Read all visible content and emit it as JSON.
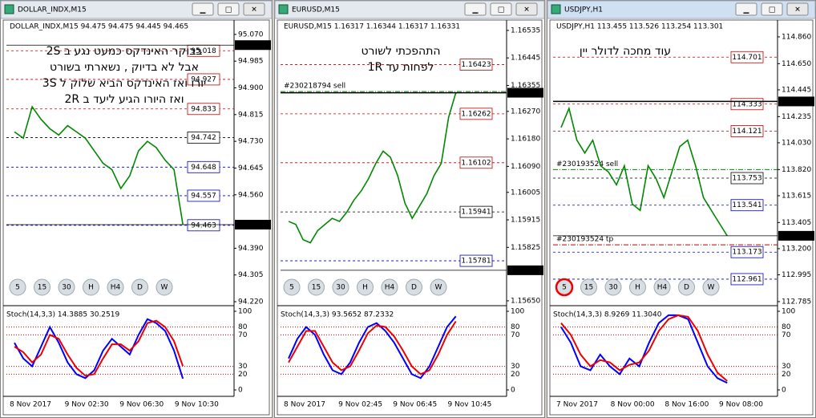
{
  "windows": [
    {
      "title": "DOLLAR_INDX,M15",
      "header": "DOLLAR_INDX,M15  94.475 94.475 94.445 94.465",
      "note": [
        "בבוקר האינדקס כמעט נגע ב 2S",
        "אבל לא בדיוק , נשארתי בשורט",
        "יורו ואז האינדקס הביא שלוק ל 3S",
        "ואז היורו הגיע ליעד ב 2R"
      ],
      "ylim": [
        94.215,
        95.108
      ],
      "price_ticks": [
        {
          "value": 95.07,
          "label": "95.070"
        },
        94.985,
        {
          "value": 94.9,
          "label": "94.900"
        },
        94.815,
        {
          "value": 94.73,
          "label": "94.730"
        },
        94.645,
        {
          "value": 94.56,
          "label": "94.560"
        },
        {
          "value": 94.39,
          "label": "94.390"
        },
        94.305,
        {
          "value": 94.22,
          "label": "94.220"
        }
      ],
      "highlights": [
        95.036,
        94.465
      ],
      "levels": [
        {
          "price": 95.018,
          "color": "#c00000"
        },
        {
          "price": 94.927,
          "color": "#c00000"
        },
        {
          "price": 94.833,
          "color": "#c00000"
        },
        {
          "price": 94.742,
          "color": "#000000"
        },
        {
          "price": 94.648,
          "color": "#0000c0"
        },
        {
          "price": 94.557,
          "color": "#0000c0"
        },
        {
          "price": 94.463,
          "color": "#0000c0"
        }
      ],
      "trades": [],
      "closes": [
        94.76,
        94.74,
        94.84,
        94.8,
        94.77,
        94.75,
        94.78,
        94.76,
        94.74,
        94.7,
        94.66,
        94.64,
        94.58,
        94.62,
        94.7,
        94.73,
        94.71,
        94.67,
        94.64,
        94.465
      ],
      "periods": [
        "5",
        "15",
        "30",
        "H",
        "H4",
        "D",
        "W"
      ],
      "stoch_label": "Stoch(14,3,3) 14.3885 30.2519",
      "stoch_ticks": [
        100,
        80,
        70,
        30,
        20,
        0
      ],
      "stoch_main": [
        60,
        40,
        30,
        55,
        80,
        60,
        35,
        20,
        15,
        25,
        50,
        65,
        55,
        45,
        70,
        90,
        85,
        75,
        50,
        14.3885
      ],
      "stoch_signal": [
        55,
        48,
        35,
        45,
        70,
        65,
        45,
        28,
        18,
        20,
        40,
        58,
        58,
        50,
        62,
        85,
        88,
        80,
        62,
        30.2519
      ],
      "times": [
        "8 Nov 2017",
        "9 Nov 02:30",
        "9 Nov 06:30",
        "9 Nov 10:30"
      ]
    },
    {
      "title": "EURUSD,M15",
      "header": "EURUSD,M15  1.16317 1.16344 1.16317 1.16331",
      "note": [
        "התהפכתי לשורט",
        "לפחות עד 1R"
      ],
      "ylim": [
        1.15642,
        1.16561
      ],
      "price_ticks": [
        1.16535,
        1.16445,
        1.16355,
        {
          "value": 1.1627,
          "label": "1.16270"
        },
        {
          "value": 1.1618,
          "label": "1.16180"
        },
        {
          "value": 1.1609,
          "label": "1.16090"
        },
        1.16005,
        1.15915,
        1.15825,
        {
          "value": 1.1565,
          "label": "1.15650"
        }
      ],
      "highlights": [
        1.16331,
        {
          "value": 1.1575,
          "label": "1.15750"
        }
      ],
      "levels": [
        {
          "price": 1.16423,
          "color": "#c00000"
        },
        {
          "price": 1.16262,
          "color": "#c00000"
        },
        {
          "price": 1.16102,
          "color": "#c00000"
        },
        {
          "price": 1.15941,
          "color": "#000000"
        },
        {
          "price": 1.15781,
          "color": "#0000c0"
        }
      ],
      "trades": [
        {
          "label": "#230218794 sell",
          "price": 1.16335
        }
      ],
      "closes": [
        1.1591,
        1.159,
        1.1585,
        1.1584,
        1.1588,
        1.159,
        1.1592,
        1.1591,
        1.1594,
        1.1598,
        1.1601,
        1.1605,
        1.161,
        1.1614,
        1.1612,
        1.1606,
        1.1597,
        1.1592,
        1.1596,
        1.16,
        1.1606,
        1.161,
        1.1625,
        1.16331
      ],
      "periods": [
        "5",
        "15",
        "30",
        "H",
        "H4",
        "D",
        "W"
      ],
      "stoch_label": "Stoch(14,3,3) 93.5652 87.2332",
      "stoch_ticks": [
        100,
        80,
        70,
        30,
        20,
        0
      ],
      "stoch_main": [
        40,
        65,
        80,
        70,
        45,
        25,
        20,
        35,
        60,
        80,
        85,
        75,
        60,
        40,
        20,
        15,
        30,
        55,
        80,
        93.5652
      ],
      "stoch_signal": [
        35,
        55,
        75,
        75,
        55,
        35,
        25,
        30,
        50,
        72,
        82,
        80,
        68,
        50,
        30,
        20,
        25,
        45,
        70,
        87.2332
      ],
      "times": [
        "8 Nov 2017",
        "9 Nov 02:45",
        "9 Nov 06:45",
        "9 Nov 10:45"
      ]
    },
    {
      "title": "USDJPY,H1",
      "header": "USDJPY,H1  113.455 113.526 113.254 113.301",
      "note": [
        "עוד מחכה לדולר יין"
      ],
      "ylim": [
        112.772,
        114.973
      ],
      "price_ticks": [
        {
          "value": 114.86,
          "label": "114.860"
        },
        {
          "value": 114.65,
          "label": "114.650"
        },
        114.445,
        114.235,
        {
          "value": 114.03,
          "label": "114.030"
        },
        {
          "value": 113.82,
          "label": "113.820"
        },
        113.615,
        113.405,
        {
          "value": 113.2,
          "label": "113.200"
        },
        112.995,
        112.785
      ],
      "highlights": [
        114.354,
        113.301
      ],
      "levels": [
        {
          "price": 114.701,
          "color": "#c00000"
        },
        {
          "price": 114.333,
          "color": "#c00000"
        },
        {
          "price": 114.121,
          "color": "#c00000"
        },
        {
          "price": 113.753,
          "color": "#000000"
        },
        {
          "price": 113.541,
          "color": "#0000c0"
        },
        {
          "price": 113.173,
          "color": "#0000c0"
        },
        {
          "price": 112.961,
          "color": "#0000c0"
        }
      ],
      "trades": [
        {
          "label": "#230193524 sell",
          "price": 113.82
        },
        {
          "label": "#230193524 tp",
          "price": 113.23
        }
      ],
      "closes": [
        114.15,
        114.3,
        114.05,
        113.95,
        114.05,
        113.85,
        113.8,
        113.7,
        113.85,
        113.55,
        113.5,
        113.85,
        113.75,
        113.6,
        113.8,
        114,
        114.05,
        113.85,
        113.6,
        113.5,
        113.4,
        113.301
      ],
      "periods": [
        "5",
        "15",
        "30",
        "H",
        "H4",
        "D",
        "W"
      ],
      "stoch_label": "Stoch(14,3,3) 8.9269 11.3040",
      "stoch_ticks": [
        100,
        80,
        70,
        30,
        20,
        0
      ],
      "stoch_main": [
        80,
        60,
        30,
        25,
        45,
        30,
        20,
        40,
        30,
        60,
        85,
        95,
        95,
        90,
        60,
        30,
        15,
        8.9269
      ],
      "stoch_signal": [
        85,
        70,
        45,
        30,
        38,
        35,
        25,
        32,
        35,
        50,
        75,
        90,
        95,
        93,
        75,
        45,
        22,
        11.304
      ],
      "times": [
        "7 Nov 2017",
        "8 Nov 00:00",
        "8 Nov 16:00",
        "9 Nov 08:00"
      ]
    }
  ]
}
